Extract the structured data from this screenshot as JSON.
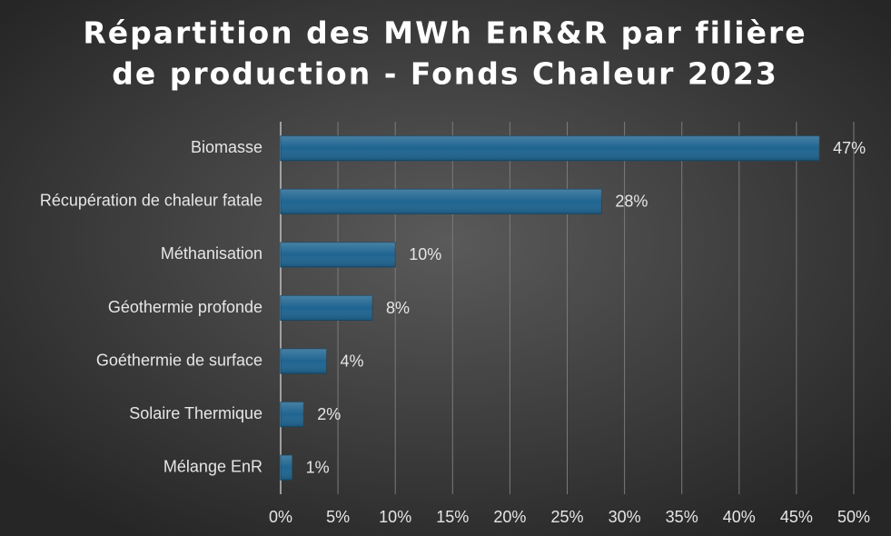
{
  "chart_data": {
    "type": "bar",
    "orientation": "horizontal",
    "title": [
      "Répartition des MWh EnR&R par filière",
      "de production - Fonds Chaleur 2023"
    ],
    "categories": [
      "Biomasse",
      "Récupération de chaleur fatale",
      "Méthanisation",
      "Géothermie profonde",
      "Goéthermie de surface",
      "Solaire Thermique",
      "Mélange EnR"
    ],
    "values": [
      47,
      28,
      10,
      8,
      4,
      2,
      1
    ],
    "value_labels": [
      "47%",
      "28%",
      "10%",
      "8%",
      "4%",
      "2%",
      "1%"
    ],
    "color": "#1f6591",
    "xlim": [
      0,
      50
    ],
    "xticks": [
      {
        "value": 0,
        "label": "0%"
      },
      {
        "value": 5,
        "label": "5%"
      },
      {
        "value": 10,
        "label": "10%"
      },
      {
        "value": 15,
        "label": "15%"
      },
      {
        "value": 20,
        "label": "20%"
      },
      {
        "value": 25,
        "label": "25%"
      },
      {
        "value": 30,
        "label": "30%"
      },
      {
        "value": 35,
        "label": "35%"
      },
      {
        "value": 40,
        "label": "40%"
      },
      {
        "value": 45,
        "label": "45%"
      },
      {
        "value": 50,
        "label": "50%"
      }
    ],
    "grid": true
  }
}
